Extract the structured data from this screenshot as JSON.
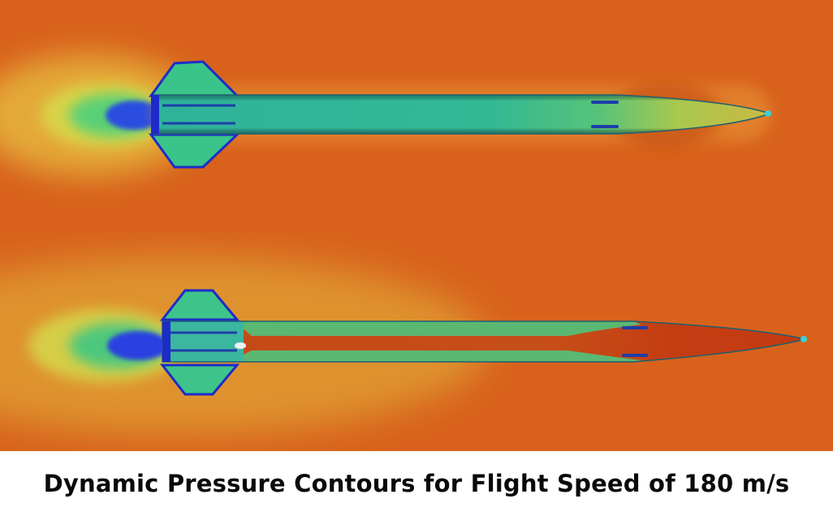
{
  "caption": "Dynamic Pressure Contours for Flight Speed of 180 m/s",
  "panels": [
    {
      "name": "top-contour-panel"
    },
    {
      "name": "bottom-contour-panel"
    }
  ],
  "colors": {
    "freestream": "#d8621c",
    "high": "#e8a633",
    "mid_yellow": "#d8c93a",
    "green": "#3ec884",
    "cyan": "#2fb8c8",
    "low": "#1a2cd8"
  }
}
